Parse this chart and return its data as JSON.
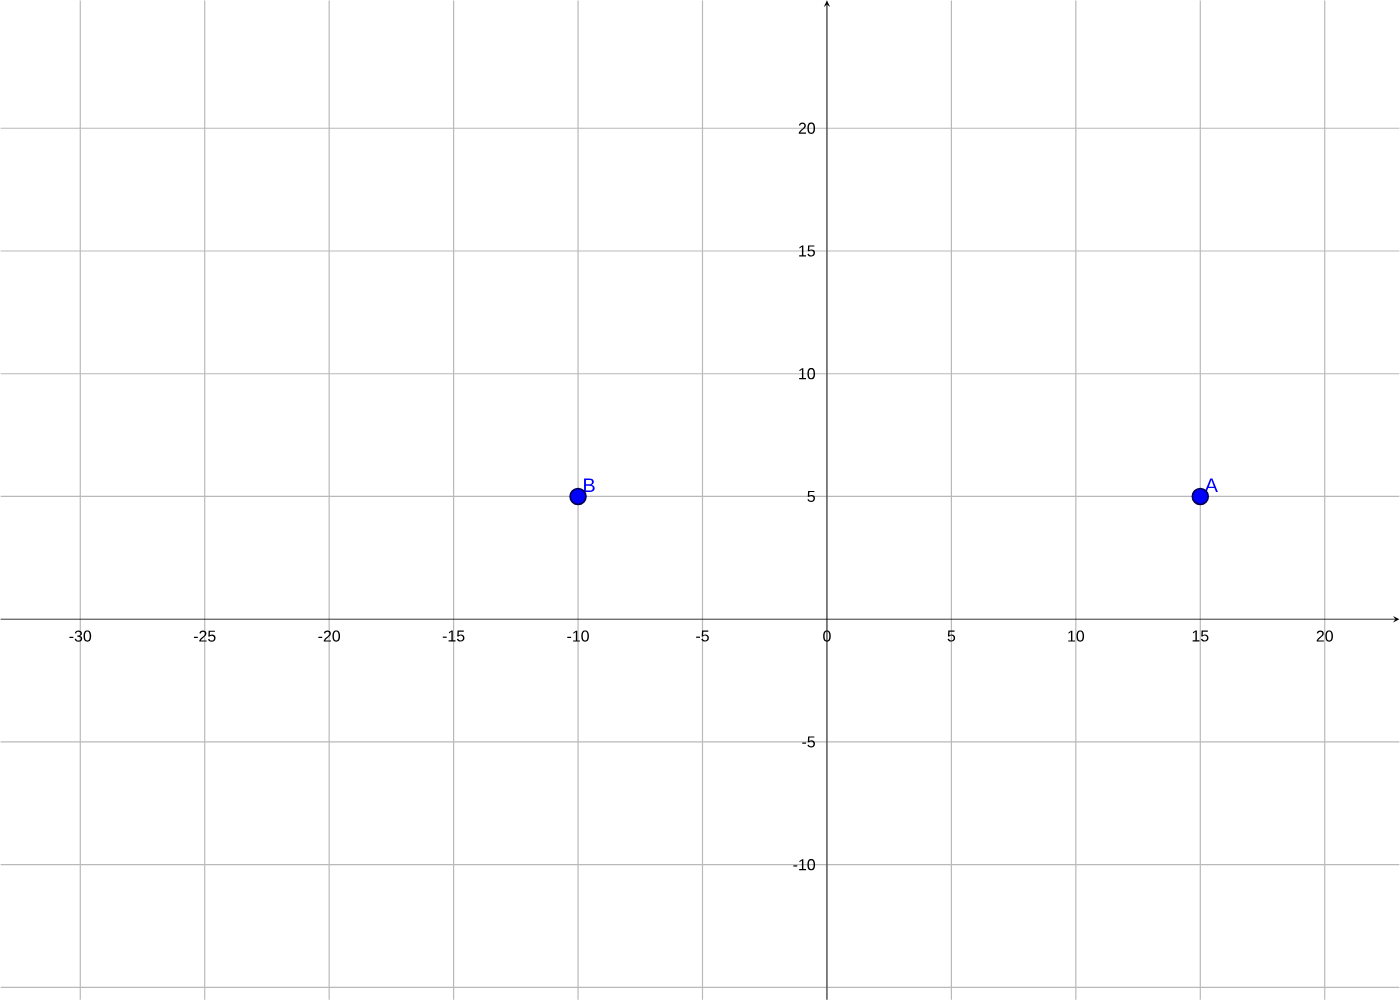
{
  "chart_data": {
    "type": "scatter",
    "x": [
      15,
      -10
    ],
    "values": [
      5,
      5
    ],
    "color": "#0000ff",
    "marker": "circle",
    "xlim": [
      -33.2,
      23
    ],
    "ylim": [
      -15.5,
      25.2
    ],
    "xticks": [
      -30,
      -25,
      -20,
      -15,
      -10,
      -5,
      0,
      5,
      10,
      15,
      20
    ],
    "yticks": [
      {
        "value": -15,
        "label": null
      },
      -10,
      -5,
      5,
      10,
      15,
      20
    ],
    "grid": true,
    "annotations": [
      {
        "text": "A",
        "x": 15,
        "y": 5
      },
      {
        "text": "B",
        "x": -10,
        "y": 5
      }
    ]
  }
}
